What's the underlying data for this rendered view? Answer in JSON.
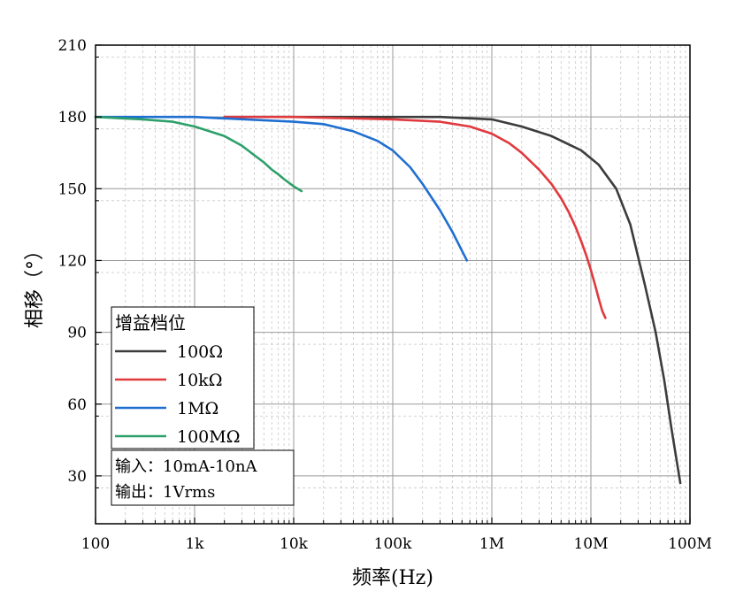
{
  "chart_data": {
    "type": "line",
    "xlabel": "频率(Hz)",
    "ylabel": "相移（°）",
    "x_scale": "log",
    "xlim": [
      100,
      100000000
    ],
    "ylim": [
      10,
      210
    ],
    "x_ticks": [
      100,
      1000,
      10000,
      100000,
      1000000,
      10000000,
      100000000
    ],
    "x_tick_labels": [
      "100",
      "1k",
      "10k",
      "100k",
      "1M",
      "10M",
      "100M"
    ],
    "y_ticks": [
      30,
      60,
      90,
      120,
      150,
      180,
      210
    ],
    "y_tick_labels": [
      "30",
      "60",
      "90",
      "120",
      "150",
      "180",
      "210"
    ],
    "grid": true,
    "legend": {
      "title": "增益档位",
      "placement": "lower-left",
      "entries": [
        "100Ω",
        "10kΩ",
        "1MΩ",
        "100MΩ"
      ]
    },
    "annotations": [
      "输入：10mA-10nA",
      "输出：1Vrms"
    ],
    "series": [
      {
        "name": "100Ω",
        "color": "#3c3c3c",
        "x": [
          2000,
          10000,
          100000,
          300000,
          1000000,
          2000000,
          4000000,
          8000000,
          12000000,
          18000000,
          25000000,
          35000000,
          45000000,
          55000000,
          65000000,
          75000000,
          80000000
        ],
        "y": [
          180,
          180,
          180,
          180,
          179,
          176,
          172,
          166,
          160,
          150,
          135,
          110,
          90,
          70,
          50,
          34,
          27
        ]
      },
      {
        "name": "10kΩ",
        "color": "#e0393e",
        "x": [
          2000,
          10000,
          100000,
          300000,
          600000,
          1000000,
          1500000,
          2000000,
          3000000,
          4000000,
          5000000,
          6000000,
          7000000,
          8000000,
          9000000,
          10000000,
          11000000,
          12000000,
          13000000,
          14000000
        ],
        "y": [
          180,
          180,
          179,
          178,
          176,
          173,
          169,
          165,
          158,
          152,
          146,
          140,
          134,
          128,
          122,
          116,
          110,
          104,
          99,
          96
        ]
      },
      {
        "name": "1MΩ",
        "color": "#1f6fd1",
        "x": [
          100,
          1000,
          10000,
          20000,
          40000,
          70000,
          100000,
          150000,
          200000,
          300000,
          400000,
          500000,
          560000
        ],
        "y": [
          180,
          180,
          178,
          177,
          174,
          170,
          166,
          159,
          152,
          141,
          132,
          124,
          120
        ]
      },
      {
        "name": "100MΩ",
        "color": "#2ea06a",
        "x": [
          100,
          300,
          600,
          1000,
          2000,
          3000,
          4000,
          5000,
          6000,
          7000,
          8000,
          10000,
          12000
        ],
        "y": [
          180,
          179,
          178,
          176,
          172,
          168,
          164,
          161,
          158,
          156,
          154,
          151,
          149
        ]
      }
    ]
  }
}
